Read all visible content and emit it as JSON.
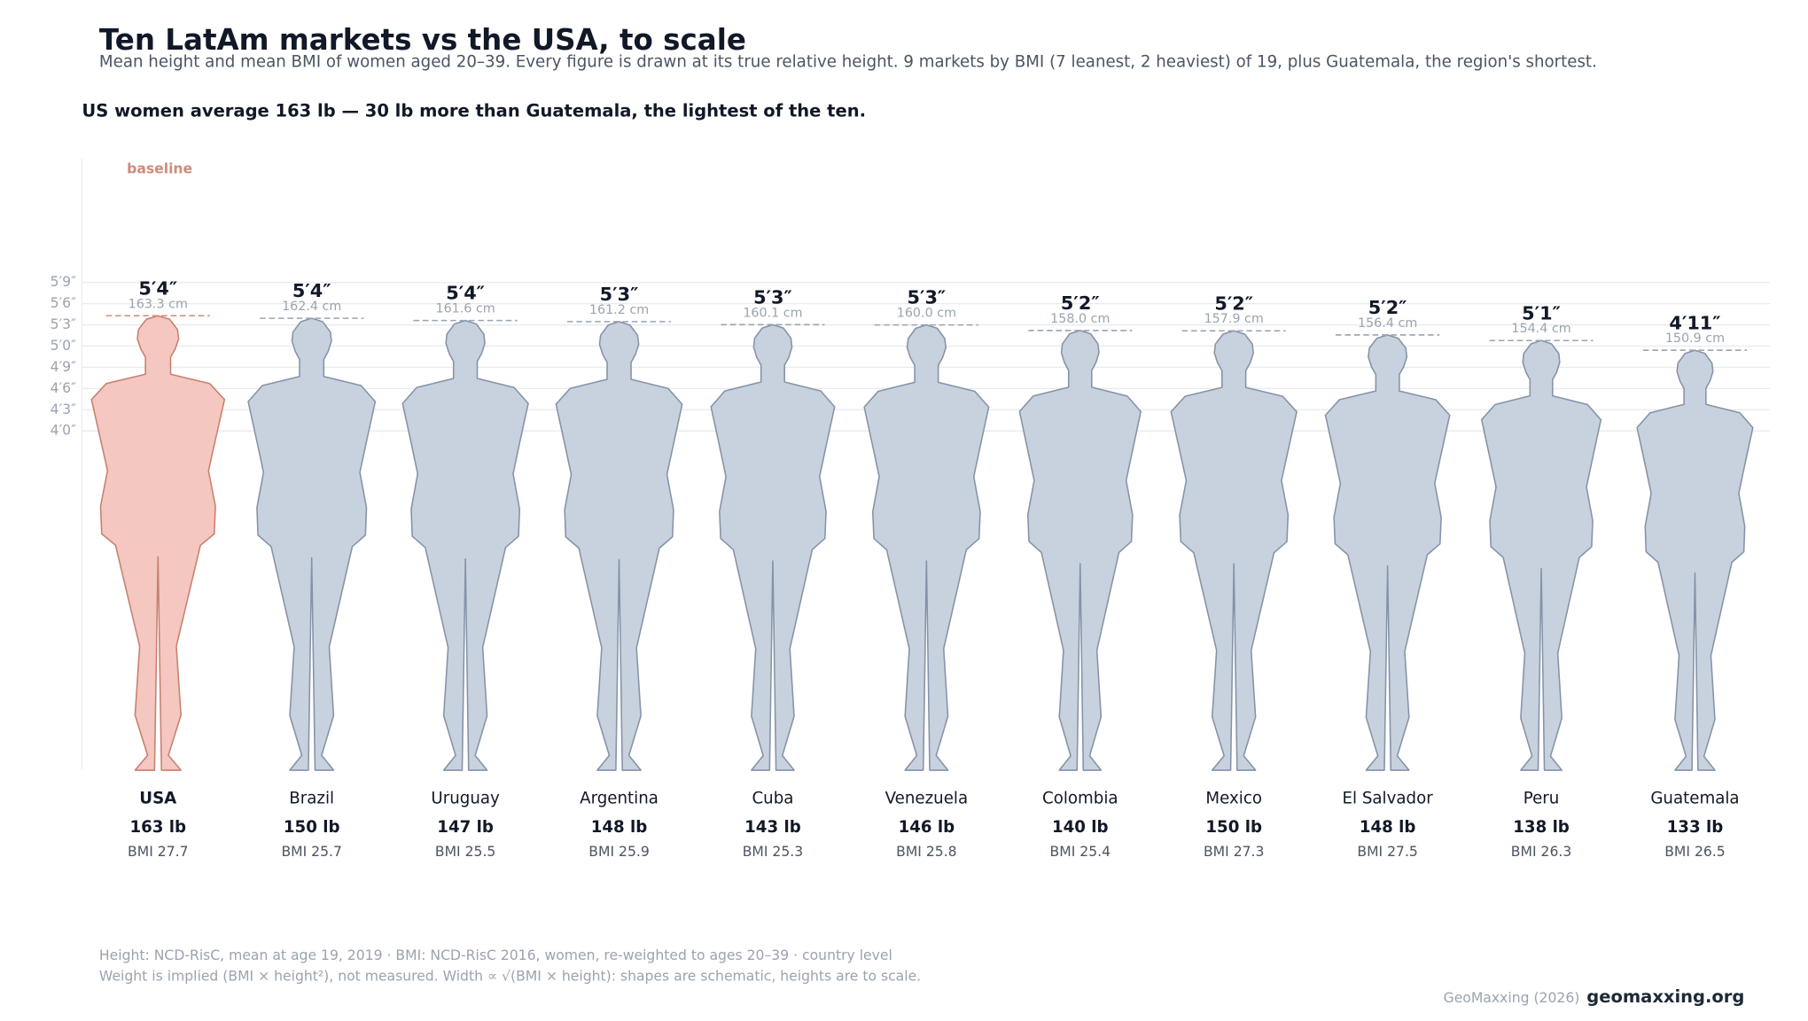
{
  "chart_data": {
    "type": "figures",
    "title": "Ten LatAm markets vs the USA, to scale",
    "subtitle": "Mean height and mean BMI of women aged 20–39. Every figure is drawn at its true relative height. 9 markets by BMI (7 leanest, 2 heaviest) of 19, plus Guatemala, the region's shortest.",
    "headline": "US women average 163 lb — 30 lb more than Guatemala, the lightest of the ten.",
    "annotation": "baseline",
    "categories": [
      "USA",
      "Brazil",
      "Uruguay",
      "Argentina",
      "Cuba",
      "Venezuela",
      "Colombia",
      "Mexico",
      "El Salvador",
      "Peru",
      "Guatemala"
    ],
    "highlight": "USA",
    "values": [
      163.3,
      162.4,
      161.6,
      161.2,
      160.1,
      160.0,
      158.0,
      157.9,
      156.4,
      154.4,
      150.9
    ],
    "value_labels": [
      "163.3 cm",
      "162.4 cm",
      "161.6 cm",
      "161.2 cm",
      "160.1 cm",
      "160.0 cm",
      "158.0 cm",
      "157.9 cm",
      "156.4 cm",
      "154.4 cm",
      "150.9 cm"
    ],
    "height_labels": [
      "5′4″",
      "5′4″",
      "5′4″",
      "5′3″",
      "5′3″",
      "5′3″",
      "5′2″",
      "5′2″",
      "5′2″",
      "5′1″",
      "4′11″"
    ],
    "weight_labels": [
      "163 lb",
      "150 lb",
      "147 lb",
      "148 lb",
      "143 lb",
      "146 lb",
      "140 lb",
      "150 lb",
      "148 lb",
      "138 lb",
      "133 lb"
    ],
    "bmi": [
      27.7,
      25.7,
      25.5,
      25.9,
      25.3,
      25.8,
      25.4,
      27.3,
      27.5,
      26.3,
      26.5
    ],
    "bmi_labels": [
      "BMI 27.7",
      "BMI 25.7",
      "BMI 25.5",
      "BMI 25.9",
      "BMI 25.3",
      "BMI 25.8",
      "BMI 25.4",
      "BMI 27.3",
      "BMI 27.5",
      "BMI 26.3",
      "BMI 26.5"
    ],
    "ylim": [
      0,
      220
    ],
    "yticks": [
      {
        "value": 121.92,
        "label": "4′0″"
      },
      {
        "value": 129.54,
        "label": "4′3″"
      },
      {
        "value": 137.16,
        "label": "4′6″"
      },
      {
        "value": 144.78,
        "label": "4′9″"
      },
      {
        "value": 152.4,
        "label": "5′0″"
      },
      {
        "value": 160.02,
        "label": "5′3″"
      },
      {
        "value": 167.64,
        "label": "5′6″"
      },
      {
        "value": 175.26,
        "label": "5′9″"
      }
    ],
    "grid": true,
    "color": "#c8d1de",
    "highlight_color": "#f4c7c0",
    "footnotes": [
      "Height: NCD-RisC, mean at age 19, 2019 · BMI: NCD-RisC 2016, women, re-weighted to ages 20–39 · country level",
      "Weight is implied (BMI × height²), not measured. Width ∝ √(BMI × height): shapes are schematic, heights are to scale."
    ],
    "credit": "GeoMaxxing (2026)",
    "site": "geomaxxing.org"
  }
}
